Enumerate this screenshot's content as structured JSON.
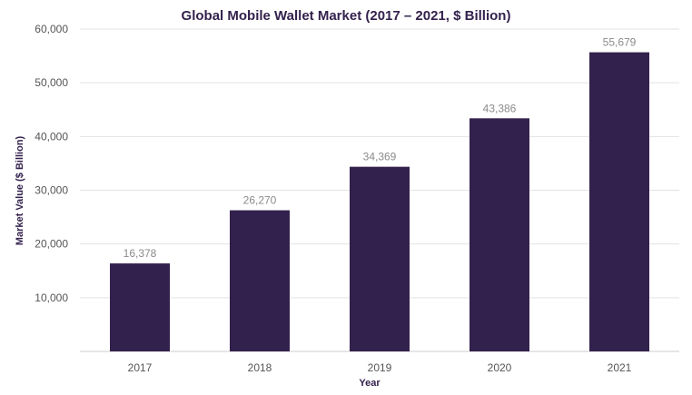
{
  "chart_data": {
    "type": "bar",
    "title": "Global Mobile Wallet Market (2017 – 2021, $ Billion)",
    "xlabel": "Year",
    "ylabel": "Market Value ($ Billion)",
    "categories": [
      "2017",
      "2018",
      "2019",
      "2020",
      "2021"
    ],
    "values": [
      16378,
      26270,
      34369,
      43386,
      55679
    ],
    "value_labels": [
      "16,378",
      "26,270",
      "34,369",
      "43,386",
      "55,679"
    ],
    "ylim": [
      0,
      60000
    ],
    "y_ticks": [
      10000,
      20000,
      30000,
      40000,
      50000,
      60000
    ],
    "y_tick_labels": [
      "10,000",
      "20,000",
      "30,000",
      "40,000",
      "50,000",
      "60,000"
    ],
    "grid": true,
    "legend": "none",
    "bar_color": "#33214d"
  }
}
